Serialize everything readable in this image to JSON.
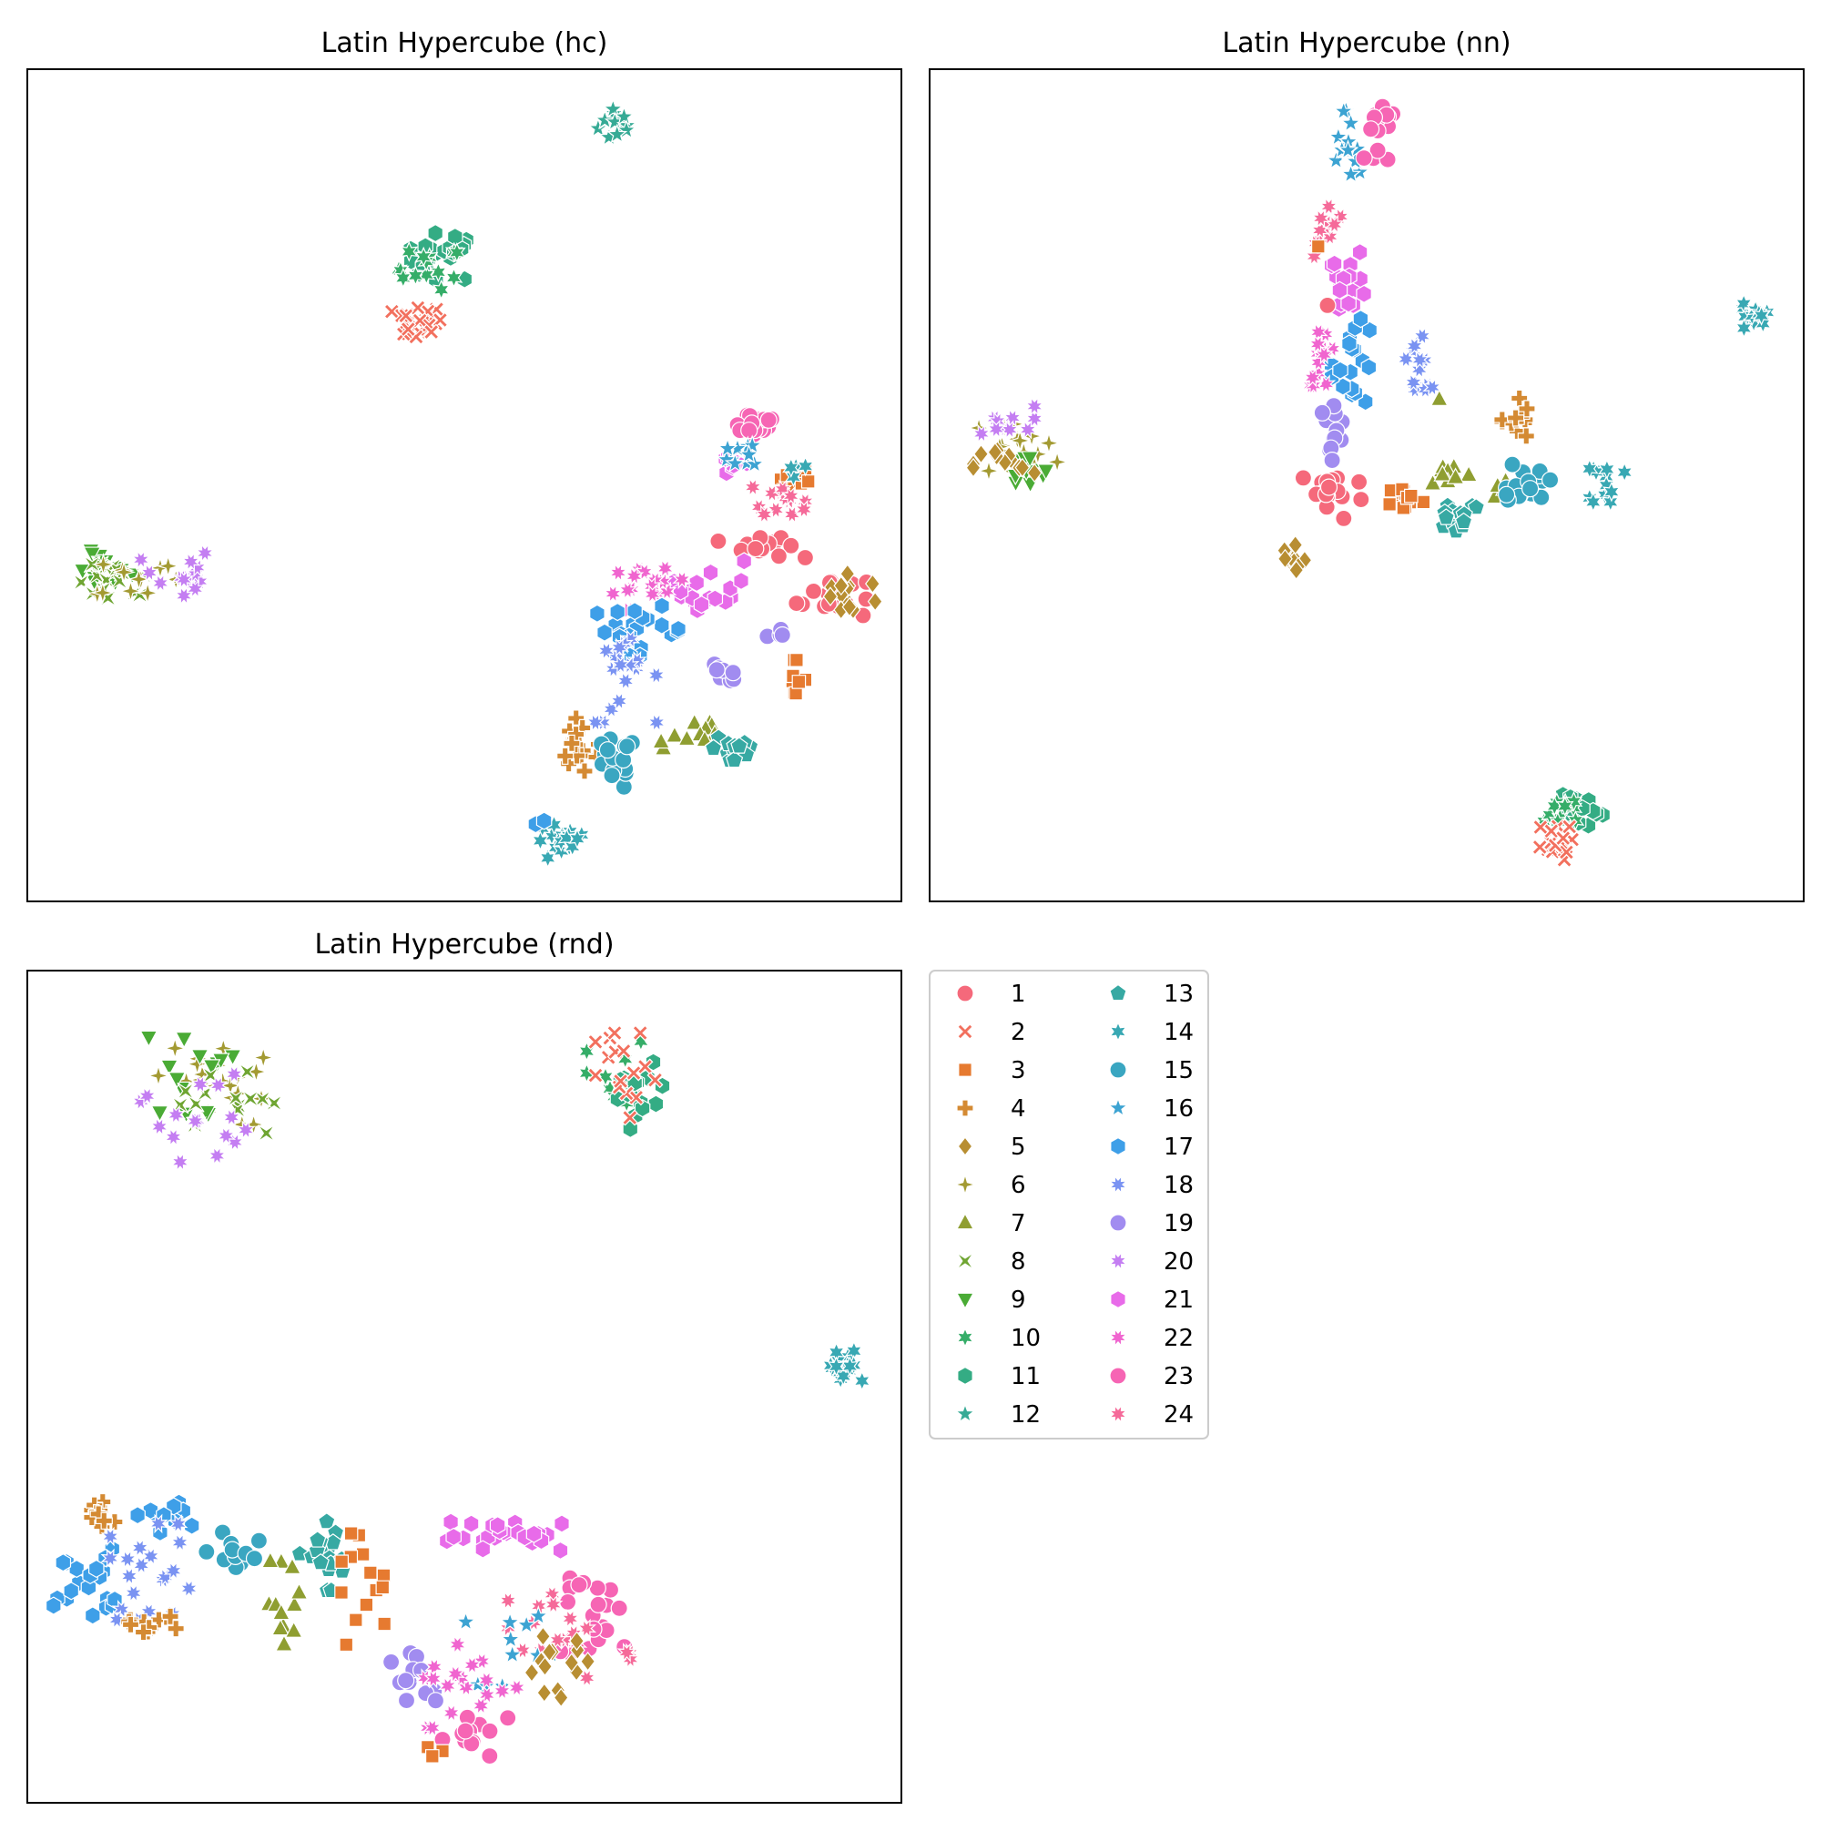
{
  "chart_data": [
    {
      "type": "scatter",
      "title": "Latin Hypercube (hc)",
      "xlim": [
        0,
        100
      ],
      "ylim": [
        0,
        100
      ],
      "grid": false,
      "axes_ticks": false,
      "clusters": [
        {
          "label": "12",
          "cx": 67.5,
          "cy": 93.5,
          "rx": 2.2,
          "ry": 2.2,
          "n": 14
        },
        {
          "label": "11",
          "cx": 47.5,
          "cy": 77.5,
          "rx": 4.0,
          "ry": 2.8,
          "n": 22
        },
        {
          "label": "10",
          "cx": 46.0,
          "cy": 76.0,
          "rx": 3.5,
          "ry": 2.5,
          "n": 14
        },
        {
          "label": "2",
          "cx": 44.5,
          "cy": 69.5,
          "rx": 2.8,
          "ry": 2.0,
          "n": 22
        },
        {
          "label": "9",
          "cx": 8.5,
          "cy": 40.0,
          "rx": 3.5,
          "ry": 2.2,
          "n": 16
        },
        {
          "label": "8",
          "cx": 10.0,
          "cy": 38.0,
          "rx": 4.0,
          "ry": 2.5,
          "n": 16
        },
        {
          "label": "6",
          "cx": 12.5,
          "cy": 39.0,
          "rx": 4.5,
          "ry": 2.5,
          "n": 12
        },
        {
          "label": "20",
          "cx": 17.0,
          "cy": 39.0,
          "rx": 4.0,
          "ry": 3.5,
          "n": 14
        },
        {
          "label": "23",
          "cx": 83.0,
          "cy": 57.5,
          "rx": 3.0,
          "ry": 1.5,
          "n": 16
        },
        {
          "label": "21",
          "cx": 81.0,
          "cy": 52.5,
          "rx": 2.0,
          "ry": 1.5,
          "n": 8
        },
        {
          "label": "16",
          "cx": 82.5,
          "cy": 54.0,
          "rx": 2.5,
          "ry": 2.0,
          "n": 10
        },
        {
          "label": "3",
          "cx": 87.0,
          "cy": 50.5,
          "rx": 2.5,
          "ry": 1.5,
          "n": 10
        },
        {
          "label": "24",
          "cx": 86.0,
          "cy": 48.5,
          "rx": 3.0,
          "ry": 2.0,
          "n": 14
        },
        {
          "label": "14",
          "cx": 88.5,
          "cy": 52.0,
          "rx": 1.5,
          "ry": 1.0,
          "n": 4
        },
        {
          "label": "1",
          "cx": 84.0,
          "cy": 42.5,
          "rx": 5.0,
          "ry": 1.2,
          "n": 14
        },
        {
          "label": "1",
          "cx": 92.0,
          "cy": 37.0,
          "rx": 4.0,
          "ry": 3.0,
          "n": 16
        },
        {
          "label": "5",
          "cx": 93.5,
          "cy": 36.5,
          "rx": 3.5,
          "ry": 3.0,
          "n": 14
        },
        {
          "label": "21",
          "cx": 78.0,
          "cy": 38.0,
          "rx": 4.0,
          "ry": 3.0,
          "n": 18
        },
        {
          "label": "22",
          "cx": 71.0,
          "cy": 37.5,
          "rx": 4.0,
          "ry": 2.5,
          "n": 16
        },
        {
          "label": "17",
          "cx": 70.0,
          "cy": 32.5,
          "rx": 5.0,
          "ry": 3.0,
          "n": 24
        },
        {
          "label": "19",
          "cx": 79.5,
          "cy": 27.5,
          "rx": 2.5,
          "ry": 1.0,
          "n": 8
        },
        {
          "label": "19",
          "cx": 86.0,
          "cy": 32.0,
          "rx": 1.5,
          "ry": 1.0,
          "n": 4
        },
        {
          "label": "3",
          "cx": 87.5,
          "cy": 27.0,
          "rx": 1.5,
          "ry": 2.0,
          "n": 8
        },
        {
          "label": "18",
          "cx": 68.5,
          "cy": 26.5,
          "rx": 3.5,
          "ry": 5.0,
          "n": 18
        },
        {
          "label": "7",
          "cx": 76.0,
          "cy": 20.0,
          "rx": 4.0,
          "ry": 2.5,
          "n": 12
        },
        {
          "label": "13",
          "cx": 81.0,
          "cy": 18.5,
          "rx": 2.5,
          "ry": 2.5,
          "n": 16
        },
        {
          "label": "4",
          "cx": 63.5,
          "cy": 18.5,
          "rx": 3.0,
          "ry": 3.5,
          "n": 16
        },
        {
          "label": "15",
          "cx": 67.0,
          "cy": 16.5,
          "rx": 2.5,
          "ry": 3.0,
          "n": 18
        },
        {
          "label": "14",
          "cx": 61.0,
          "cy": 7.0,
          "rx": 2.8,
          "ry": 2.2,
          "n": 18
        },
        {
          "label": "17",
          "cx": 58.5,
          "cy": 9.0,
          "rx": 0.8,
          "ry": 0.8,
          "n": 2
        }
      ]
    },
    {
      "type": "scatter",
      "title": "Latin Hypercube (nn)",
      "xlim": [
        0,
        100
      ],
      "ylim": [
        0,
        100
      ],
      "grid": false,
      "axes_ticks": false,
      "clusters": [
        {
          "label": "16",
          "cx": 48.0,
          "cy": 91.0,
          "rx": 1.5,
          "ry": 4.0,
          "n": 14
        },
        {
          "label": "23",
          "cx": 51.5,
          "cy": 91.5,
          "rx": 1.8,
          "ry": 4.0,
          "n": 16
        },
        {
          "label": "24",
          "cx": 45.5,
          "cy": 81.0,
          "rx": 1.5,
          "ry": 3.5,
          "n": 12
        },
        {
          "label": "3",
          "cx": 44.5,
          "cy": 78.5,
          "rx": 0.6,
          "ry": 0.6,
          "n": 1
        },
        {
          "label": "21",
          "cx": 48.0,
          "cy": 74.5,
          "rx": 2.0,
          "ry": 3.5,
          "n": 18
        },
        {
          "label": "1",
          "cx": 45.5,
          "cy": 72.0,
          "rx": 0.6,
          "ry": 0.6,
          "n": 1
        },
        {
          "label": "17",
          "cx": 48.5,
          "cy": 65.0,
          "rx": 2.5,
          "ry": 5.0,
          "n": 18
        },
        {
          "label": "22",
          "cx": 45.0,
          "cy": 65.5,
          "rx": 1.5,
          "ry": 3.5,
          "n": 14
        },
        {
          "label": "19",
          "cx": 46.0,
          "cy": 56.5,
          "rx": 1.5,
          "ry": 3.5,
          "n": 12
        },
        {
          "label": "18",
          "cx": 56.0,
          "cy": 65.0,
          "rx": 1.5,
          "ry": 3.5,
          "n": 12
        },
        {
          "label": "7",
          "cx": 58.0,
          "cy": 60.5,
          "rx": 0.5,
          "ry": 0.5,
          "n": 1
        },
        {
          "label": "14",
          "cx": 94.0,
          "cy": 70.0,
          "rx": 1.8,
          "ry": 1.8,
          "n": 14
        },
        {
          "label": "6",
          "cx": 10.0,
          "cy": 54.5,
          "rx": 5.0,
          "ry": 3.0,
          "n": 18
        },
        {
          "label": "20",
          "cx": 8.0,
          "cy": 57.5,
          "rx": 4.0,
          "ry": 2.0,
          "n": 10
        },
        {
          "label": "9",
          "cx": 10.5,
          "cy": 51.5,
          "rx": 3.5,
          "ry": 2.0,
          "n": 12
        },
        {
          "label": "5",
          "cx": 8.5,
          "cy": 52.5,
          "rx": 3.5,
          "ry": 2.0,
          "n": 12
        },
        {
          "label": "1",
          "cx": 46.0,
          "cy": 49.0,
          "rx": 3.5,
          "ry": 3.0,
          "n": 18
        },
        {
          "label": "5",
          "cx": 41.5,
          "cy": 41.0,
          "rx": 1.5,
          "ry": 2.5,
          "n": 12
        },
        {
          "label": "3",
          "cx": 54.5,
          "cy": 48.5,
          "rx": 2.0,
          "ry": 1.5,
          "n": 14
        },
        {
          "label": "7",
          "cx": 59.5,
          "cy": 51.5,
          "rx": 2.5,
          "ry": 1.5,
          "n": 10
        },
        {
          "label": "13",
          "cx": 60.5,
          "cy": 46.5,
          "rx": 2.5,
          "ry": 2.0,
          "n": 16
        },
        {
          "label": "7",
          "cx": 66.0,
          "cy": 49.5,
          "rx": 2.0,
          "ry": 1.0,
          "n": 8
        },
        {
          "label": "4",
          "cx": 67.0,
          "cy": 57.5,
          "rx": 1.5,
          "ry": 3.0,
          "n": 14
        },
        {
          "label": "15",
          "cx": 68.5,
          "cy": 50.5,
          "rx": 2.5,
          "ry": 2.5,
          "n": 18
        },
        {
          "label": "14",
          "cx": 77.5,
          "cy": 50.5,
          "rx": 2.0,
          "ry": 2.5,
          "n": 14
        },
        {
          "label": "11",
          "cx": 73.5,
          "cy": 11.0,
          "rx": 3.5,
          "ry": 2.5,
          "n": 16
        },
        {
          "label": "10",
          "cx": 72.0,
          "cy": 10.5,
          "rx": 3.0,
          "ry": 2.5,
          "n": 12
        },
        {
          "label": "2",
          "cx": 71.0,
          "cy": 7.0,
          "rx": 2.5,
          "ry": 2.0,
          "n": 18
        }
      ]
    },
    {
      "type": "scatter",
      "title": "Latin Hypercube (rnd)",
      "xlim": [
        0,
        100
      ],
      "ylim": [
        0,
        100
      ],
      "grid": false,
      "axes_ticks": false,
      "clusters": [
        {
          "label": "6",
          "cx": 21.0,
          "cy": 86.5,
          "rx": 6.0,
          "ry": 5.0,
          "n": 22
        },
        {
          "label": "9",
          "cx": 18.5,
          "cy": 87.0,
          "rx": 5.0,
          "ry": 5.0,
          "n": 14
        },
        {
          "label": "8",
          "cx": 23.0,
          "cy": 84.0,
          "rx": 5.5,
          "ry": 5.0,
          "n": 14
        },
        {
          "label": "20",
          "cx": 19.0,
          "cy": 83.0,
          "rx": 6.0,
          "ry": 6.0,
          "n": 16
        },
        {
          "label": "10",
          "cx": 67.5,
          "cy": 86.5,
          "rx": 3.5,
          "ry": 5.0,
          "n": 16
        },
        {
          "label": "11",
          "cx": 70.0,
          "cy": 84.5,
          "rx": 3.5,
          "ry": 4.5,
          "n": 14
        },
        {
          "label": "2",
          "cx": 68.5,
          "cy": 87.0,
          "rx": 3.5,
          "ry": 5.5,
          "n": 16
        },
        {
          "label": "14",
          "cx": 93.5,
          "cy": 52.0,
          "rx": 2.0,
          "ry": 2.5,
          "n": 16
        },
        {
          "label": "4",
          "cx": 8.5,
          "cy": 35.0,
          "rx": 2.5,
          "ry": 2.0,
          "n": 12
        },
        {
          "label": "17",
          "cx": 6.5,
          "cy": 26.5,
          "rx": 3.5,
          "ry": 4.0,
          "n": 20
        },
        {
          "label": "17",
          "cx": 16.5,
          "cy": 34.5,
          "rx": 4.0,
          "ry": 2.0,
          "n": 10
        },
        {
          "label": "18",
          "cx": 14.5,
          "cy": 28.0,
          "rx": 5.0,
          "ry": 6.0,
          "n": 20
        },
        {
          "label": "4",
          "cx": 13.0,
          "cy": 21.5,
          "rx": 4.0,
          "ry": 1.0,
          "n": 12
        },
        {
          "label": "15",
          "cx": 23.5,
          "cy": 29.5,
          "rx": 3.0,
          "ry": 3.0,
          "n": 12
        },
        {
          "label": "13",
          "cx": 34.0,
          "cy": 30.0,
          "rx": 4.0,
          "ry": 4.5,
          "n": 18
        },
        {
          "label": "7",
          "cx": 30.0,
          "cy": 24.0,
          "rx": 2.5,
          "ry": 5.0,
          "n": 12
        },
        {
          "label": "3",
          "cx": 37.5,
          "cy": 26.0,
          "rx": 3.5,
          "ry": 7.0,
          "n": 14
        },
        {
          "label": "21",
          "cx": 56.0,
          "cy": 32.0,
          "rx": 8.0,
          "ry": 2.0,
          "n": 24
        },
        {
          "label": "23",
          "cx": 65.5,
          "cy": 22.5,
          "rx": 4.5,
          "ry": 4.5,
          "n": 20
        },
        {
          "label": "24",
          "cx": 62.0,
          "cy": 20.5,
          "rx": 7.0,
          "ry": 5.5,
          "n": 18
        },
        {
          "label": "16",
          "cx": 55.0,
          "cy": 19.0,
          "rx": 5.0,
          "ry": 5.0,
          "n": 12
        },
        {
          "label": "5",
          "cx": 60.0,
          "cy": 16.0,
          "rx": 4.5,
          "ry": 4.0,
          "n": 14
        },
        {
          "label": "19",
          "cx": 45.0,
          "cy": 15.0,
          "rx": 3.5,
          "ry": 3.0,
          "n": 12
        },
        {
          "label": "22",
          "cx": 50.0,
          "cy": 14.0,
          "rx": 6.0,
          "ry": 5.0,
          "n": 18
        },
        {
          "label": "23",
          "cx": 51.5,
          "cy": 8.0,
          "rx": 4.0,
          "ry": 3.0,
          "n": 14
        },
        {
          "label": "3",
          "cx": 46.5,
          "cy": 6.0,
          "rx": 1.0,
          "ry": 1.5,
          "n": 3
        }
      ]
    }
  ],
  "legend": {
    "placement": "lower-right",
    "columns": 2,
    "entries": [
      {
        "label": "1",
        "marker": "circle",
        "color": "#f5697b"
      },
      {
        "label": "2",
        "marker": "x",
        "color": "#f2705e"
      },
      {
        "label": "3",
        "marker": "square",
        "color": "#e67a30"
      },
      {
        "label": "4",
        "marker": "plus",
        "color": "#d48a33"
      },
      {
        "label": "5",
        "marker": "diamond",
        "color": "#b88e32"
      },
      {
        "label": "6",
        "marker": "star4",
        "color": "#a39a32"
      },
      {
        "label": "7",
        "marker": "triangle-up",
        "color": "#8f9e31"
      },
      {
        "label": "8",
        "marker": "bowtie",
        "color": "#6fa532"
      },
      {
        "label": "9",
        "marker": "triangle-down",
        "color": "#4aab35"
      },
      {
        "label": "10",
        "marker": "star6",
        "color": "#35ad68"
      },
      {
        "label": "11",
        "marker": "hexagon",
        "color": "#34ac84"
      },
      {
        "label": "12",
        "marker": "star5",
        "color": "#36aa95"
      },
      {
        "label": "13",
        "marker": "pentagon",
        "color": "#37a9a3"
      },
      {
        "label": "14",
        "marker": "star6",
        "color": "#38a8b3"
      },
      {
        "label": "15",
        "marker": "circle",
        "color": "#3aa6c1"
      },
      {
        "label": "16",
        "marker": "star5",
        "color": "#3ca3d2"
      },
      {
        "label": "17",
        "marker": "hexagon",
        "color": "#3e9fe8"
      },
      {
        "label": "18",
        "marker": "star8",
        "color": "#7a93f2"
      },
      {
        "label": "19",
        "marker": "circle",
        "color": "#a18cf0"
      },
      {
        "label": "20",
        "marker": "star8",
        "color": "#c47ef2"
      },
      {
        "label": "21",
        "marker": "hexagon",
        "color": "#e86be9"
      },
      {
        "label": "22",
        "marker": "star8",
        "color": "#f065cf"
      },
      {
        "label": "23",
        "marker": "circle",
        "color": "#f665b4"
      },
      {
        "label": "24",
        "marker": "star8",
        "color": "#f56a99"
      }
    ]
  }
}
